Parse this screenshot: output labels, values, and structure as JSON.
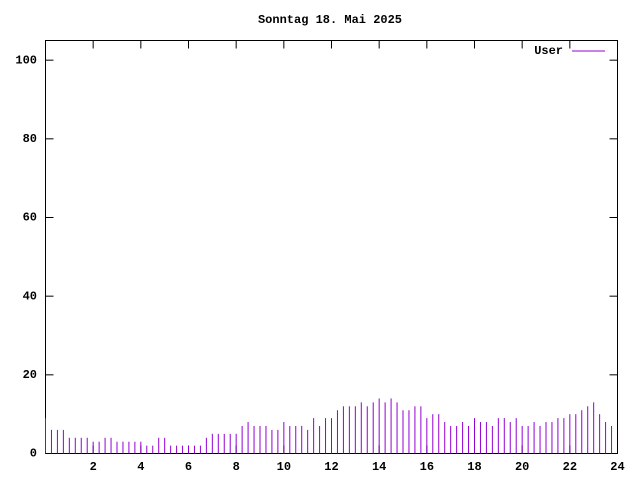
{
  "chart_data": {
    "type": "impulse",
    "title": "Sonntag 18. Mai 2025",
    "x": [
      0,
      0.25,
      0.5,
      0.75,
      1,
      1.25,
      1.5,
      1.75,
      2,
      2.25,
      2.5,
      2.75,
      3,
      3.25,
      3.5,
      3.75,
      4,
      4.25,
      4.5,
      4.75,
      5,
      5.25,
      5.5,
      5.75,
      6,
      6.25,
      6.5,
      6.75,
      7,
      7.25,
      7.5,
      7.75,
      8,
      8.25,
      8.5,
      8.75,
      9,
      9.25,
      9.5,
      9.75,
      10,
      10.25,
      10.5,
      10.75,
      11,
      11.25,
      11.5,
      11.75,
      12,
      12.25,
      12.5,
      12.75,
      13,
      13.25,
      13.5,
      13.75,
      14,
      14.25,
      14.5,
      14.75,
      15,
      15.25,
      15.5,
      15.75,
      16,
      16.25,
      16.5,
      16.75,
      17,
      17.25,
      17.5,
      17.75,
      18,
      18.25,
      18.5,
      18.75,
      19,
      19.25,
      19.5,
      19.75,
      20,
      20.25,
      20.5,
      20.75,
      21,
      21.25,
      21.5,
      21.75,
      22,
      22.25,
      22.5,
      22.75,
      23,
      23.25,
      23.5,
      23.75
    ],
    "series": [
      {
        "name": "User",
        "color": "#9400d3",
        "values": [
          9,
          6,
          6,
          6,
          4,
          4,
          4,
          4,
          3,
          3,
          4,
          4,
          3,
          3,
          3,
          3,
          3,
          2,
          2,
          4,
          4,
          2,
          2,
          2,
          2,
          2,
          2,
          4,
          5,
          5,
          5,
          5,
          5,
          7,
          8,
          7,
          7,
          7,
          6,
          6,
          8,
          7,
          7,
          7,
          6,
          9,
          7,
          9,
          9,
          11,
          12,
          12,
          12,
          13,
          12,
          13,
          14,
          13,
          14,
          13,
          11,
          11,
          12,
          12,
          9,
          10,
          10,
          8,
          7,
          7,
          8,
          7,
          9,
          8,
          8,
          7,
          9,
          9,
          8,
          9,
          7,
          7,
          8,
          7,
          8,
          8,
          9,
          9,
          10,
          10,
          11,
          12,
          13,
          10,
          8,
          7
        ]
      }
    ],
    "xlim": [
      0,
      24
    ],
    "xticks": [
      2,
      4,
      6,
      8,
      10,
      12,
      14,
      16,
      18,
      20,
      22,
      24
    ],
    "ylim": [
      0,
      105
    ],
    "yticks": [
      0,
      20,
      40,
      60,
      80,
      100
    ],
    "legend": "top-right"
  }
}
